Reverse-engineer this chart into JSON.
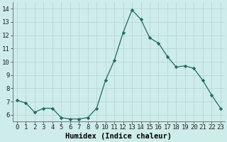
{
  "xlabel": "Humidex (Indice chaleur)",
  "x": [
    0,
    1,
    2,
    3,
    4,
    5,
    6,
    7,
    8,
    9,
    10,
    11,
    12,
    13,
    14,
    15,
    16,
    17,
    18,
    19,
    20,
    21,
    22,
    23
  ],
  "y": [
    7.1,
    6.9,
    6.2,
    6.5,
    6.5,
    5.8,
    5.7,
    5.7,
    5.8,
    6.5,
    8.6,
    10.1,
    12.2,
    13.9,
    13.2,
    11.8,
    11.4,
    10.4,
    9.6,
    9.7,
    9.5,
    8.6,
    7.5,
    6.5
  ],
  "line_color": "#1f6b5e",
  "marker": "D",
  "marker_size": 2.2,
  "bg_color": "#ceecea",
  "grid_color": "#b8d8d4",
  "ylim": [
    5.5,
    14.5
  ],
  "xlim": [
    -0.5,
    23.5
  ],
  "yticks": [
    6,
    7,
    8,
    9,
    10,
    11,
    12,
    13,
    14
  ],
  "tick_fontsize": 6.5,
  "xlabel_fontsize": 7.5
}
